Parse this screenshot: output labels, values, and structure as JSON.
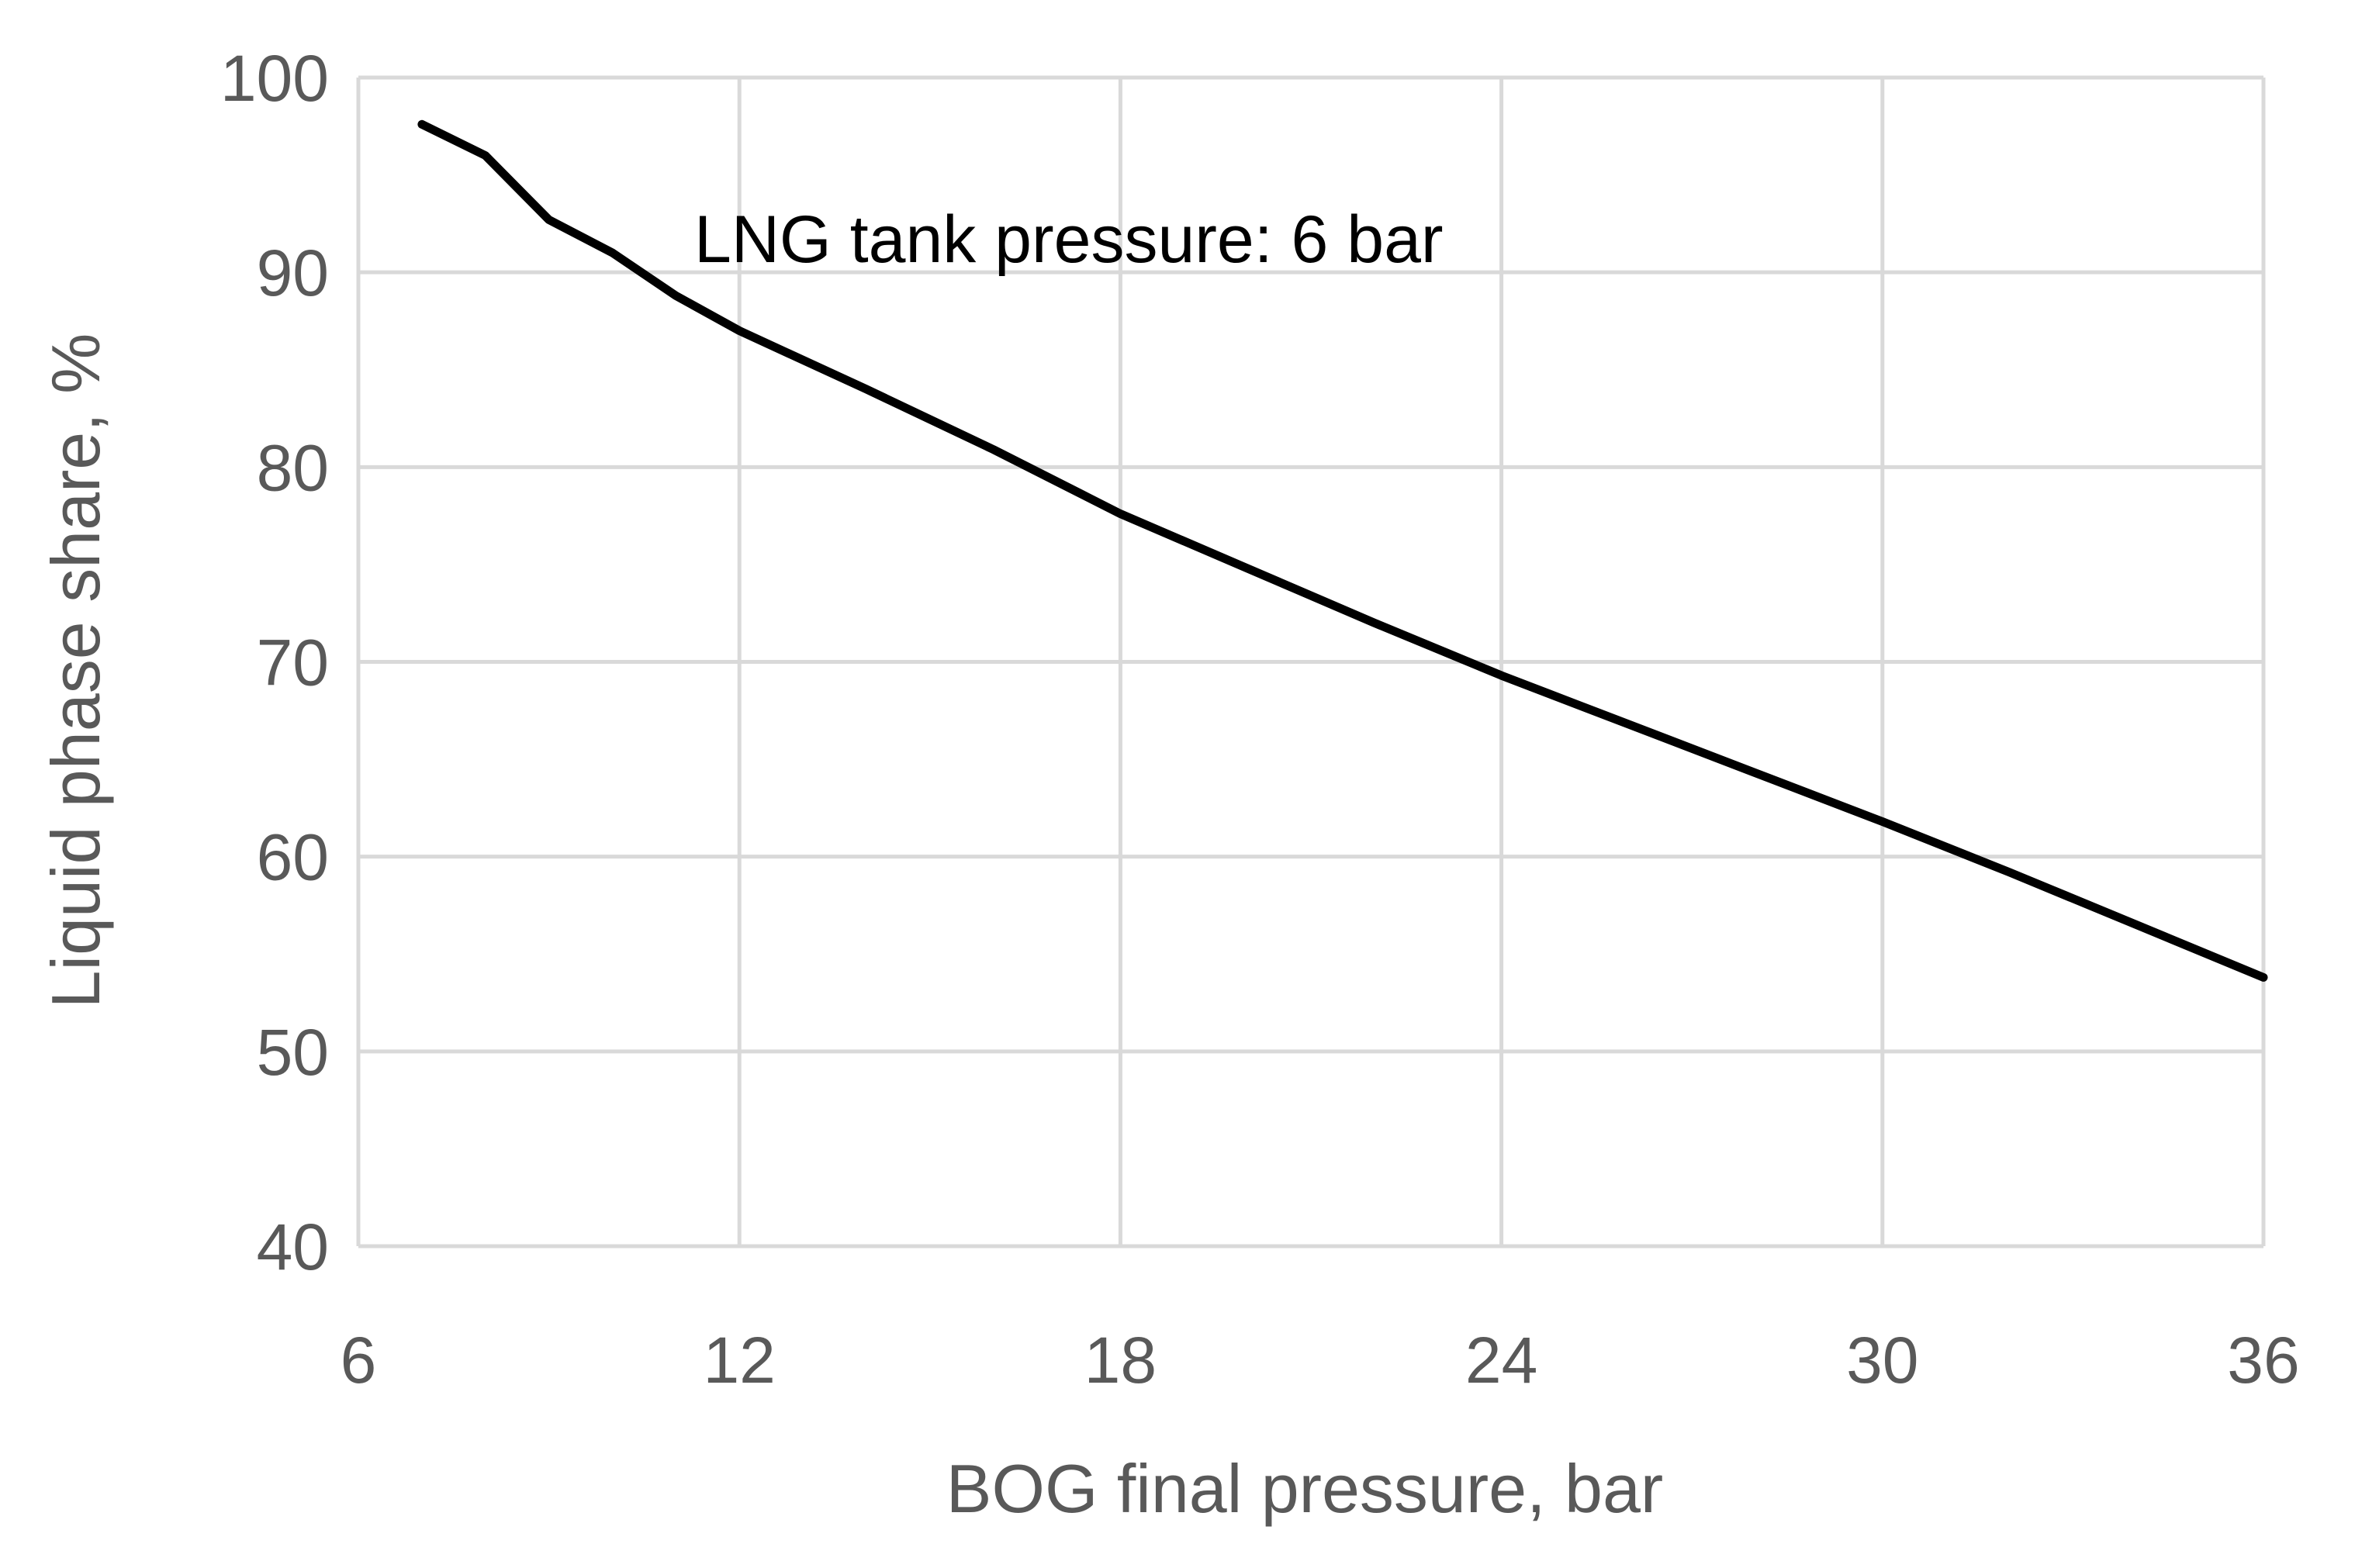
{
  "chart_data": {
    "type": "line",
    "title": "",
    "xlabel": "BOG final pressure, bar",
    "ylabel": "Liquid phase share, %",
    "xlim": [
      6,
      36
    ],
    "ylim": [
      40,
      100
    ],
    "xticks": [
      "6",
      "12",
      "18",
      "24",
      "30",
      "36"
    ],
    "yticks": [
      "40",
      "50",
      "60",
      "70",
      "80",
      "90",
      "100"
    ],
    "grid": true,
    "legend": "none",
    "annotation": "LNG tank pressure: 6 bar",
    "series": [
      {
        "color": "#000000",
        "x": [
          7,
          8,
          9,
          10,
          11,
          12,
          14,
          16,
          18,
          20,
          22,
          24,
          26,
          28,
          30,
          32,
          34,
          36
        ],
        "y": [
          97.6,
          96.0,
          92.7,
          91.0,
          88.8,
          87.0,
          84.0,
          80.9,
          77.6,
          74.8,
          72.0,
          69.3,
          66.8,
          64.3,
          61.8,
          59.2,
          56.5,
          53.8
        ]
      }
    ]
  }
}
